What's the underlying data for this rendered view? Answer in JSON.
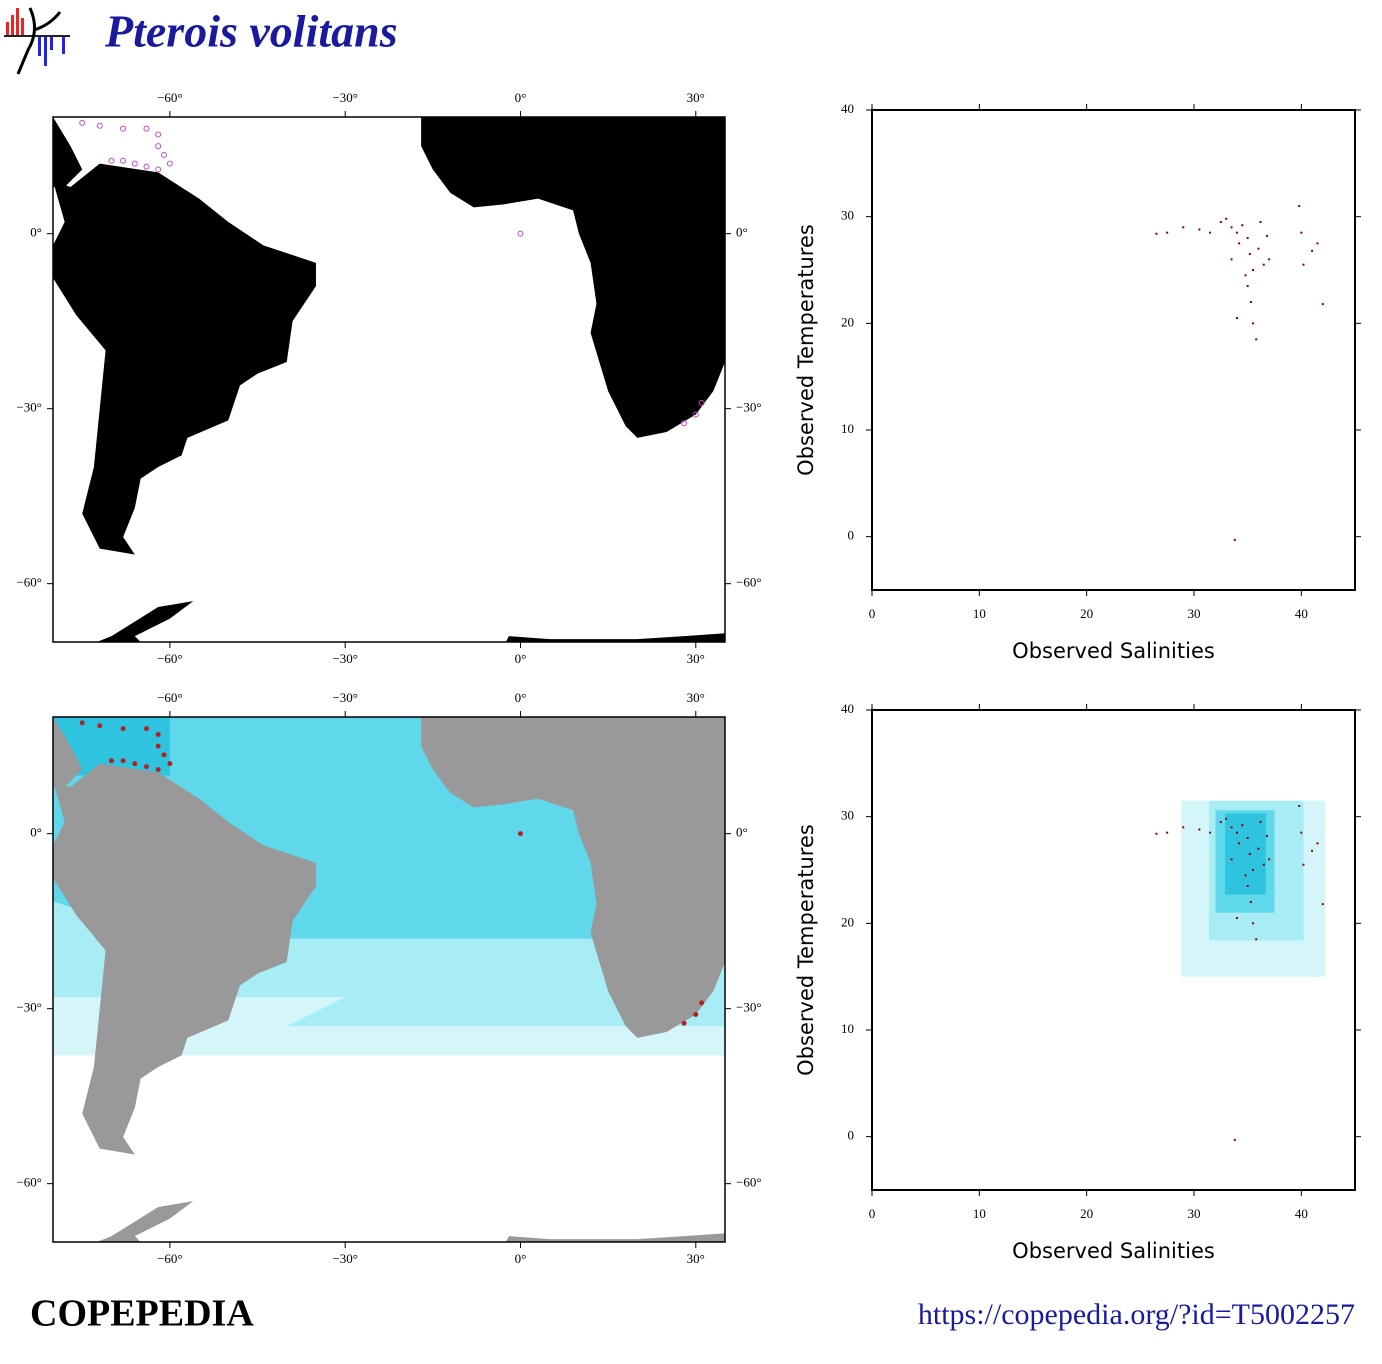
{
  "header": {
    "title": "Pterois volitans"
  },
  "footer": {
    "brand": "COPEPEDIA",
    "url": "https://copepedia.org/?id=T5002257"
  },
  "chart_data": [
    {
      "type": "map",
      "land_color": "#000000",
      "xlim": [
        -80,
        35
      ],
      "ylim": [
        -70,
        20
      ],
      "xticks": [
        {
          "value": -60,
          "label": "−60°"
        },
        {
          "value": -30,
          "label": "−30°"
        },
        {
          "value": 0,
          "label": "0°"
        },
        {
          "value": 30,
          "label": "30°"
        }
      ],
      "yticks": [
        {
          "value": -60,
          "label": "−60°"
        },
        {
          "value": -30,
          "label": "−30°"
        },
        {
          "value": 0,
          "label": "0°"
        }
      ],
      "series": [
        {
          "color": "#cc44cc",
          "marker": "hollow",
          "x": [
            -75,
            -72,
            -68,
            -64,
            -62,
            -62,
            -70,
            -68,
            -66,
            -64,
            -62,
            -60,
            -61,
            0,
            31,
            30,
            28
          ],
          "y": [
            19,
            18.5,
            18,
            18,
            17,
            15,
            12.5,
            12.5,
            12,
            11.5,
            11,
            12,
            13.5,
            0,
            -29,
            -31,
            -32.5
          ]
        }
      ]
    },
    {
      "type": "map",
      "land_color": "#999999",
      "ocean_shading": true,
      "xlim": [
        -80,
        35
      ],
      "ylim": [
        -70,
        20
      ],
      "xticks": [
        {
          "value": -60,
          "label": "−60°"
        },
        {
          "value": -30,
          "label": "−30°"
        },
        {
          "value": 0,
          "label": "0°"
        },
        {
          "value": 30,
          "label": "30°"
        }
      ],
      "yticks": [
        {
          "value": -60,
          "label": "−60°"
        },
        {
          "value": -30,
          "label": "−30°"
        },
        {
          "value": 0,
          "label": "0°"
        }
      ],
      "series": [
        {
          "color": "#b22222",
          "marker": "filled",
          "x": [
            -75,
            -72,
            -68,
            -64,
            -62,
            -62,
            -70,
            -68,
            -66,
            -64,
            -62,
            -60,
            -61,
            0,
            31,
            30,
            28
          ],
          "y": [
            19,
            18.5,
            18,
            18,
            17,
            15,
            12.5,
            12.5,
            12,
            11.5,
            11,
            12,
            13.5,
            0,
            -29,
            -31,
            -32.5
          ]
        }
      ]
    },
    {
      "type": "scatter",
      "xlabel": "Observed Salinities",
      "ylabel": "Observed Temperatures",
      "xlim": [
        0,
        45
      ],
      "ylim": [
        -5,
        40
      ],
      "xticks": [
        0,
        10,
        20,
        30,
        40
      ],
      "yticks": [
        0,
        10,
        20,
        30,
        40
      ],
      "series": [
        {
          "color": "#8b0000",
          "x": [
            26.5,
            27.5,
            29,
            30.5,
            31.5,
            32.5,
            33,
            33.5,
            34,
            34.2,
            34.5,
            35,
            35.2,
            35.5,
            35,
            35.3,
            35.5,
            35.8,
            34,
            36,
            36.5,
            36.8,
            37,
            36.2,
            39.8,
            40,
            40.2,
            41,
            41.5,
            42,
            33.8,
            33.5,
            34.8
          ],
          "y": [
            28.4,
            28.5,
            29,
            28.8,
            28.5,
            29.5,
            29.8,
            29,
            28.5,
            27.5,
            29.2,
            28,
            26.5,
            25,
            23.5,
            22,
            20,
            18.5,
            20.5,
            27,
            25.5,
            28.2,
            26,
            29.5,
            31,
            28.5,
            25.5,
            26.8,
            27.5,
            21.8,
            -0.3,
            26,
            24.5
          ]
        }
      ]
    },
    {
      "type": "scatter",
      "xlabel": "Observed Salinities",
      "ylabel": "Observed Temperatures",
      "xlim": [
        0,
        45
      ],
      "ylim": [
        -5,
        40
      ],
      "xticks": [
        0,
        10,
        20,
        30,
        40
      ],
      "yticks": [
        0,
        10,
        20,
        30,
        40
      ],
      "ranges": [
        {
          "x": [
            28.8,
            42.2
          ],
          "y": [
            15,
            31.5
          ],
          "color": "#d4f6fb"
        },
        {
          "x": [
            31.4,
            40.2
          ],
          "y": [
            18.4,
            31.5
          ],
          "color": "#a8ecf6"
        },
        {
          "x": [
            32,
            37.5
          ],
          "y": [
            21,
            30.6
          ],
          "color": "#5fd8ec"
        },
        {
          "x": [
            32.9,
            36.7
          ],
          "y": [
            22.7,
            30.3
          ],
          "color": "#2ec4e0"
        }
      ],
      "series": [
        {
          "color": "#8b0000",
          "x": [
            26.5,
            27.5,
            29,
            30.5,
            31.5,
            32.5,
            33,
            33.5,
            34,
            34.2,
            34.5,
            35,
            35.2,
            35.5,
            35,
            35.3,
            35.5,
            35.8,
            34,
            36,
            36.5,
            36.8,
            37,
            36.2,
            39.8,
            40,
            40.2,
            41,
            41.5,
            42,
            33.8,
            33.5,
            34.8
          ],
          "y": [
            28.4,
            28.5,
            29,
            28.8,
            28.5,
            29.5,
            29.8,
            29,
            28.5,
            27.5,
            29.2,
            28,
            26.5,
            25,
            23.5,
            22,
            20,
            18.5,
            20.5,
            27,
            25.5,
            28.2,
            26,
            29.5,
            31,
            28.5,
            25.5,
            26.8,
            27.5,
            21.8,
            -0.3,
            26,
            24.5
          ]
        }
      ]
    }
  ]
}
